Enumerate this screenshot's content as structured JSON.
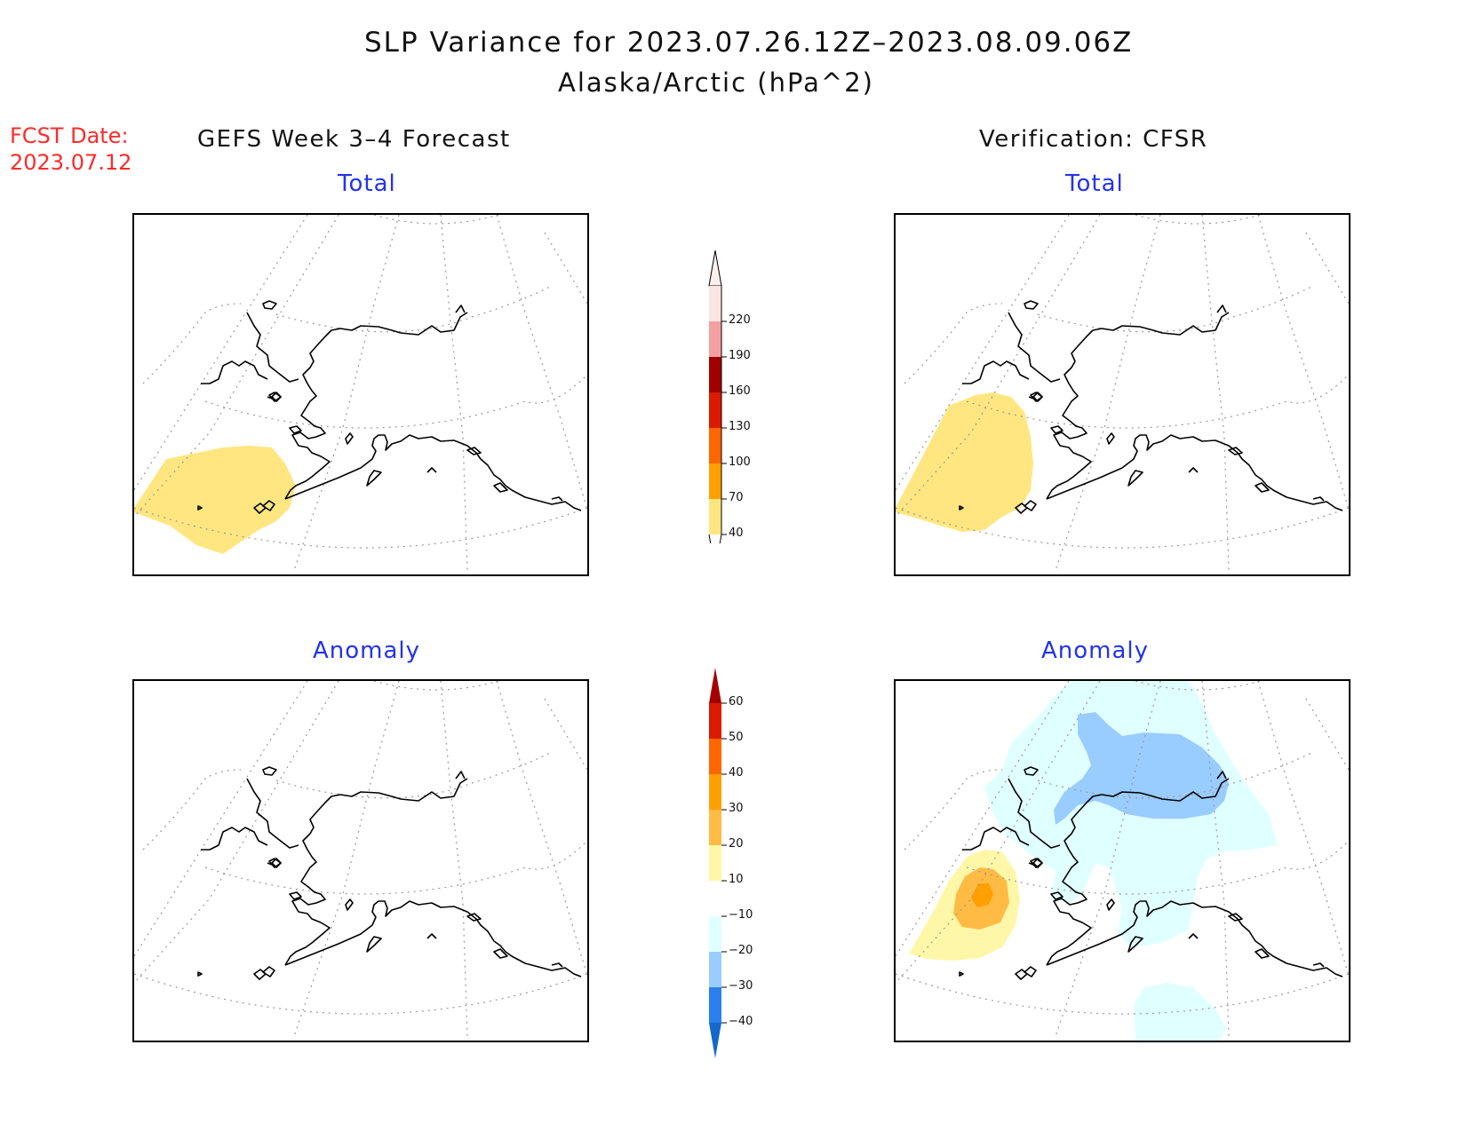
{
  "title": "SLP Variance for 2023.07.26.12Z–2023.08.09.06Z",
  "subtitle": "Alaska/Arctic (hPa^2)",
  "fcst_label": "FCST Date:",
  "fcst_date": "2023.07.12",
  "left_header": "GEFS Week 3–4 Forecast",
  "right_header": "Verification: CFSR",
  "panels": {
    "forecast_total": "Total",
    "verification_total": "Total",
    "forecast_anomaly": "Anomaly",
    "verification_anomaly": "Anomaly"
  },
  "colorbar_total": {
    "labels": [
      "220",
      "190",
      "160",
      "130",
      "100",
      "70",
      "40"
    ],
    "colors": [
      "#fbe5e3",
      "#f4a0a0",
      "#a10000",
      "#dd1a00",
      "#ff6600",
      "#ffa000",
      "#ffe680"
    ]
  },
  "colorbar_anomaly": {
    "labels": [
      "60",
      "50",
      "40",
      "30",
      "20",
      "10",
      "−10",
      "−20",
      "−30",
      "−40"
    ],
    "colors": [
      "#a50000",
      "#dd1a00",
      "#ff6600",
      "#ffa000",
      "#ffbb44",
      "#fff7a8",
      "#ffffff",
      "#e0ffff",
      "#99ccff",
      "#2b7fee",
      "#1468cc"
    ]
  },
  "fill_colors": {
    "total_40_70": "#ffe680",
    "anom_10_20": "#fff7a8",
    "anom_20_30": "#ffbb44",
    "anom_30_40": "#ffa000",
    "anom_m10_m20": "#e0ffff",
    "anom_m20_m30": "#99ccff"
  }
}
